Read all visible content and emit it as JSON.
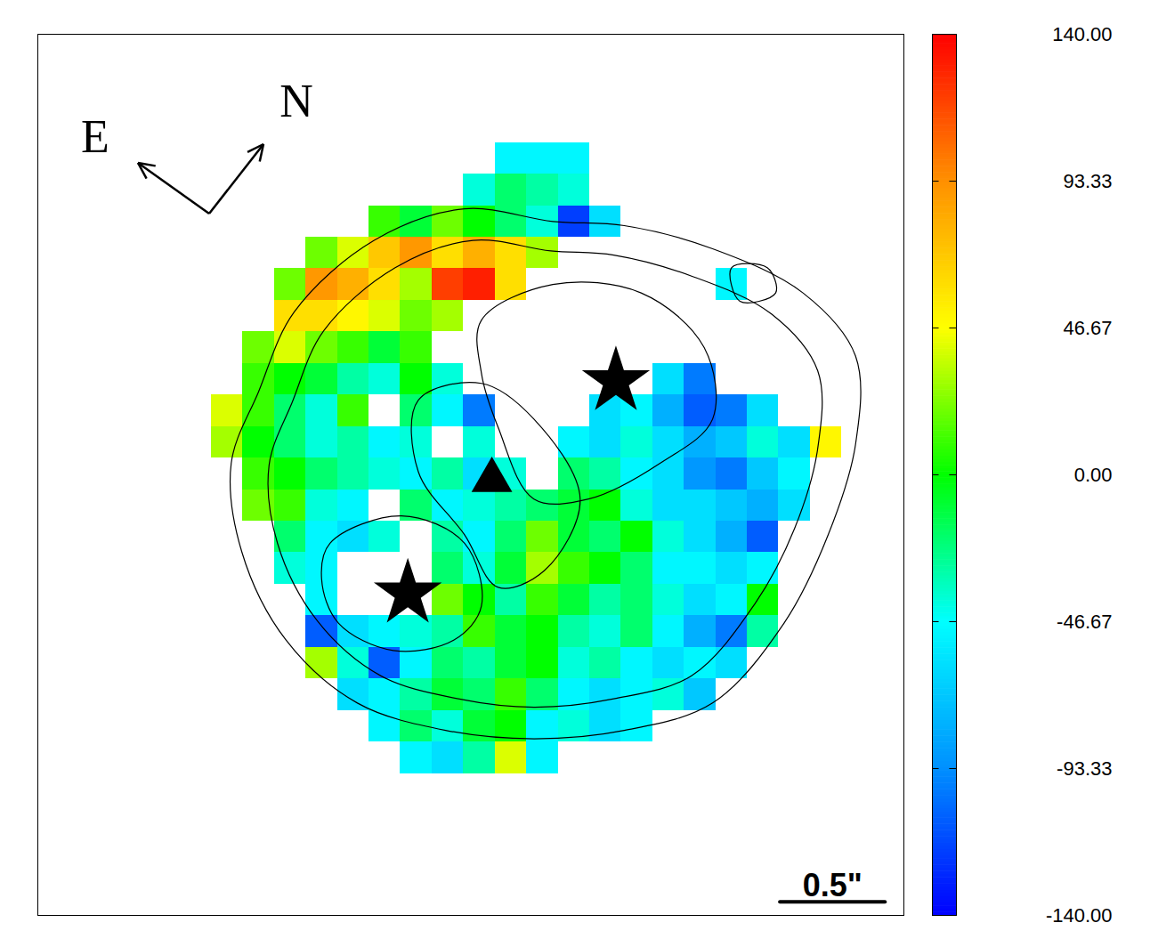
{
  "chart_data": {
    "type": "heatmap",
    "tick_labels": false,
    "xlim": [
      0,
      4.12
    ],
    "ylim": [
      0,
      4.19
    ],
    "x": [
      0.9,
      1.05,
      1.2,
      1.35,
      1.5,
      1.65,
      1.8,
      1.95,
      2.1,
      2.25,
      2.4,
      2.55,
      2.7,
      2.85,
      3.0,
      3.15,
      3.3,
      3.45,
      3.6,
      3.75
    ],
    "y": [
      3.6,
      3.45,
      3.3,
      3.15,
      3.0,
      2.85,
      2.7,
      2.55,
      2.4,
      2.25,
      2.1,
      1.95,
      1.8,
      1.65,
      1.5,
      1.35,
      1.2,
      1.05,
      0.9,
      0.75
    ],
    "values": [
      [
        null,
        null,
        null,
        null,
        null,
        null,
        null,
        null,
        null,
        -50,
        -50,
        -50,
        null,
        null,
        null,
        null,
        null,
        null,
        null,
        null
      ],
      [
        null,
        null,
        null,
        null,
        null,
        null,
        null,
        null,
        -40,
        -20,
        -30,
        -40,
        null,
        null,
        null,
        null,
        null,
        null,
        null,
        null
      ],
      [
        null,
        null,
        null,
        null,
        null,
        10,
        -10,
        20,
        0,
        -20,
        -40,
        -120,
        -60,
        null,
        null,
        null,
        null,
        null,
        null,
        null
      ],
      [
        null,
        null,
        null,
        20,
        40,
        70,
        90,
        60,
        80,
        60,
        30,
        null,
        null,
        null,
        null,
        null,
        null,
        null,
        null,
        null
      ],
      [
        null,
        null,
        20,
        90,
        80,
        60,
        30,
        120,
        130,
        60,
        null,
        null,
        null,
        null,
        null,
        null,
        -50,
        null,
        null,
        null
      ],
      [
        null,
        null,
        60,
        60,
        50,
        40,
        20,
        30,
        null,
        null,
        null,
        null,
        null,
        null,
        null,
        null,
        null,
        null,
        null,
        null
      ],
      [
        null,
        20,
        40,
        20,
        10,
        -10,
        10,
        null,
        null,
        null,
        null,
        null,
        null,
        null,
        null,
        null,
        null,
        null,
        null,
        null
      ],
      [
        null,
        10,
        0,
        -10,
        -30,
        -40,
        0,
        -40,
        null,
        null,
        null,
        null,
        null,
        null,
        -60,
        -100,
        null,
        null,
        null,
        null
      ],
      [
        40,
        10,
        -20,
        -40,
        10,
        null,
        -20,
        -50,
        -100,
        null,
        null,
        null,
        -60,
        -50,
        -80,
        -110,
        -100,
        -60,
        null,
        null
      ],
      [
        30,
        0,
        -20,
        -40,
        -30,
        -50,
        -40,
        null,
        -40,
        null,
        null,
        -50,
        -60,
        -40,
        -60,
        -80,
        -70,
        -40,
        -60,
        50
      ],
      [
        null,
        10,
        0,
        -20,
        -30,
        -40,
        -50,
        -30,
        -60,
        -40,
        null,
        -20,
        -30,
        -50,
        -60,
        -90,
        -100,
        -70,
        -50,
        null
      ],
      [
        null,
        20,
        10,
        -40,
        -50,
        null,
        -20,
        -50,
        -40,
        -30,
        -20,
        -10,
        0,
        -40,
        -60,
        -60,
        -70,
        -80,
        -60,
        null
      ],
      [
        null,
        null,
        -20,
        -50,
        -60,
        -40,
        null,
        -30,
        -50,
        -20,
        20,
        -10,
        -20,
        0,
        -40,
        -60,
        -80,
        -110,
        null,
        null
      ],
      [
        null,
        null,
        -40,
        -50,
        null,
        null,
        null,
        -20,
        -40,
        -10,
        30,
        10,
        0,
        -20,
        -50,
        -50,
        -60,
        -50,
        null,
        null
      ],
      [
        null,
        null,
        null,
        -50,
        null,
        null,
        null,
        20,
        0,
        -30,
        10,
        -10,
        -30,
        -20,
        -40,
        -60,
        -50,
        0,
        null,
        null
      ],
      [
        null,
        null,
        null,
        -110,
        -60,
        -50,
        -40,
        -30,
        10,
        -10,
        0,
        -30,
        -40,
        -20,
        -50,
        -80,
        -100,
        -30,
        null,
        null
      ],
      [
        null,
        null,
        null,
        30,
        -40,
        -110,
        -50,
        -20,
        -30,
        -10,
        0,
        -40,
        -30,
        -50,
        -60,
        -50,
        -60,
        null,
        null,
        null
      ],
      [
        null,
        null,
        null,
        null,
        -60,
        -50,
        -30,
        -10,
        -20,
        10,
        -20,
        -50,
        -60,
        -50,
        -40,
        -70,
        null,
        null,
        null,
        null
      ],
      [
        null,
        null,
        null,
        null,
        null,
        -50,
        -20,
        -40,
        -10,
        0,
        -50,
        -40,
        -60,
        -50,
        null,
        null,
        null,
        null,
        null,
        null
      ],
      [
        null,
        null,
        null,
        null,
        null,
        null,
        -50,
        -60,
        -30,
        40,
        -50,
        null,
        null,
        null,
        null,
        null,
        null,
        null,
        null,
        null
      ]
    ],
    "contours": [
      [
        [
          1.05,
          2.49
        ],
        [
          1.22,
          2.87
        ],
        [
          1.6,
          3.21
        ],
        [
          2.03,
          3.36
        ],
        [
          2.45,
          3.3
        ],
        [
          2.79,
          3.28
        ],
        [
          3.21,
          3.17
        ],
        [
          3.64,
          2.96
        ],
        [
          3.89,
          2.66
        ],
        [
          3.89,
          2.24
        ],
        [
          3.76,
          1.81
        ],
        [
          3.55,
          1.39
        ],
        [
          3.21,
          1.01
        ],
        [
          2.79,
          0.88
        ],
        [
          2.36,
          0.84
        ],
        [
          1.94,
          0.88
        ],
        [
          1.52,
          1.01
        ],
        [
          1.18,
          1.31
        ],
        [
          0.97,
          1.73
        ],
        [
          0.92,
          2.15
        ]
      ],
      [
        [
          1.21,
          2.44
        ],
        [
          1.36,
          2.78
        ],
        [
          1.7,
          3.08
        ],
        [
          2.07,
          3.21
        ],
        [
          2.44,
          3.16
        ],
        [
          2.74,
          3.14
        ],
        [
          3.11,
          3.04
        ],
        [
          3.49,
          2.86
        ],
        [
          3.71,
          2.59
        ],
        [
          3.71,
          2.22
        ],
        [
          3.6,
          1.84
        ],
        [
          3.41,
          1.48
        ],
        [
          3.11,
          1.14
        ],
        [
          2.74,
          1.03
        ],
        [
          2.36,
          0.99
        ],
        [
          2.0,
          1.03
        ],
        [
          1.63,
          1.14
        ],
        [
          1.33,
          1.4
        ],
        [
          1.14,
          1.77
        ],
        [
          1.1,
          2.14
        ]
      ],
      [
        [
          2.11,
          2.83
        ],
        [
          2.45,
          3.0
        ],
        [
          2.87,
          2.96
        ],
        [
          3.17,
          2.7
        ],
        [
          3.21,
          2.36
        ],
        [
          2.96,
          2.15
        ],
        [
          2.62,
          1.98
        ],
        [
          2.36,
          1.98
        ],
        [
          2.19,
          2.32
        ],
        [
          2.11,
          2.58
        ]
      ],
      [
        [
          1.39,
          1.77
        ],
        [
          1.73,
          1.9
        ],
        [
          2.03,
          1.77
        ],
        [
          2.11,
          1.47
        ],
        [
          1.98,
          1.31
        ],
        [
          1.69,
          1.26
        ],
        [
          1.43,
          1.39
        ],
        [
          1.35,
          1.6
        ]
      ],
      [
        [
          1.81,
          2.45
        ],
        [
          2.11,
          2.53
        ],
        [
          2.36,
          2.36
        ],
        [
          2.58,
          1.98
        ],
        [
          2.41,
          1.64
        ],
        [
          2.19,
          1.56
        ],
        [
          2.03,
          1.81
        ],
        [
          1.81,
          2.11
        ]
      ],
      [
        [
          3.3,
          3.08
        ],
        [
          3.47,
          3.08
        ],
        [
          3.51,
          2.96
        ],
        [
          3.34,
          2.92
        ]
      ]
    ],
    "markers": [
      {
        "x": 2.75,
        "y": 2.54,
        "marker": "star"
      },
      {
        "x": 1.76,
        "y": 1.53,
        "marker": "star"
      },
      {
        "x": 2.16,
        "y": 2.07,
        "marker": "triangle"
      }
    ],
    "scale_bar": {
      "x": [
        3.53,
        4.03
      ],
      "y": 0.065,
      "label": "0.5\""
    },
    "compass": {
      "east": "E",
      "north": "N"
    },
    "colorbar": {
      "range": [
        -140,
        140
      ],
      "colors": [
        "#0000ff",
        "#0090ff",
        "#00ffff",
        "#00ff00",
        "#ffff00",
        "#ff9000",
        "#ff0000"
      ],
      "ticks": [
        {
          "value": 140,
          "label": "140.00"
        },
        {
          "value": 93.33,
          "label": "93.33"
        },
        {
          "value": 46.67,
          "label": "46.67"
        },
        {
          "value": 0,
          "label": "0.00"
        },
        {
          "value": -46.67,
          "label": "-46.67"
        },
        {
          "value": -93.33,
          "label": "-93.33"
        },
        {
          "value": -140,
          "label": "-140.00"
        }
      ]
    }
  }
}
